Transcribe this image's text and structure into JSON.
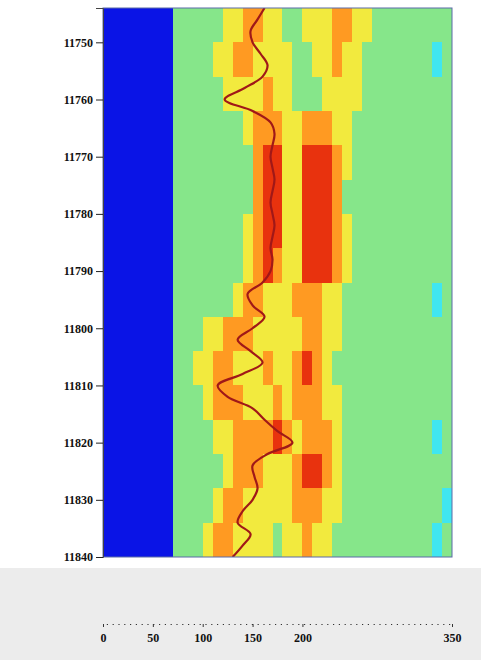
{
  "chart_data": {
    "type": "heatmap",
    "xlim": [
      0,
      350
    ],
    "xticks": [
      0,
      50,
      100,
      150,
      200,
      350
    ],
    "ylim": [
      11744,
      11840
    ],
    "yticks": [
      11750,
      11760,
      11770,
      11780,
      11790,
      11800,
      11810,
      11820,
      11830,
      11840
    ],
    "grid": false,
    "zlim": [
      0,
      4
    ],
    "x": [
      0,
      70,
      80,
      90,
      100,
      110,
      120,
      130,
      140,
      150,
      160,
      170,
      180,
      190,
      200,
      210,
      220,
      230,
      240,
      250,
      260,
      270,
      280,
      290,
      300,
      310,
      320,
      330,
      340,
      350
    ],
    "y": [
      11744,
      11750,
      11756,
      11762,
      11768,
      11774,
      11780,
      11786,
      11792,
      11798,
      11804,
      11810,
      11816,
      11822,
      11828,
      11834,
      11840
    ],
    "values": [
      [
        null,
        1,
        1,
        1,
        1,
        1,
        2,
        2,
        3,
        3,
        2,
        2,
        1,
        1,
        2,
        2,
        2,
        3,
        3,
        2,
        2,
        1,
        1,
        1,
        1,
        1,
        1,
        1,
        1
      ],
      [
        null,
        1,
        1,
        1,
        1,
        2,
        2,
        3,
        3,
        2,
        2,
        2,
        2,
        1,
        1,
        2,
        2,
        3,
        2,
        2,
        1,
        1,
        1,
        1,
        1,
        1,
        1,
        0,
        1
      ],
      [
        null,
        1,
        1,
        1,
        1,
        1,
        2,
        2,
        2,
        2,
        3,
        2,
        2,
        1,
        1,
        1,
        2,
        2,
        2,
        2,
        1,
        1,
        1,
        1,
        1,
        1,
        1,
        1,
        1
      ],
      [
        null,
        1,
        1,
        1,
        1,
        1,
        1,
        1,
        2,
        3,
        3,
        3,
        2,
        2,
        3,
        3,
        3,
        2,
        2,
        1,
        1,
        1,
        1,
        1,
        1,
        1,
        1,
        1,
        1
      ],
      [
        null,
        1,
        1,
        1,
        1,
        1,
        1,
        1,
        1,
        3,
        4,
        4,
        2,
        2,
        4,
        4,
        4,
        3,
        2,
        1,
        1,
        1,
        1,
        1,
        1,
        1,
        1,
        1,
        1
      ],
      [
        null,
        1,
        1,
        1,
        1,
        1,
        1,
        1,
        1,
        3,
        4,
        4,
        2,
        2,
        4,
        4,
        4,
        3,
        1,
        1,
        1,
        1,
        1,
        1,
        1,
        1,
        1,
        1,
        1
      ],
      [
        null,
        1,
        1,
        1,
        1,
        1,
        1,
        1,
        2,
        3,
        4,
        4,
        2,
        2,
        4,
        4,
        4,
        3,
        2,
        1,
        1,
        1,
        1,
        1,
        1,
        1,
        1,
        1,
        1
      ],
      [
        null,
        1,
        1,
        1,
        1,
        1,
        1,
        1,
        2,
        3,
        4,
        3,
        2,
        2,
        4,
        4,
        4,
        3,
        2,
        1,
        1,
        1,
        1,
        1,
        1,
        1,
        1,
        1,
        1
      ],
      [
        null,
        1,
        1,
        1,
        1,
        1,
        1,
        2,
        3,
        3,
        2,
        2,
        2,
        3,
        3,
        3,
        2,
        2,
        1,
        1,
        1,
        1,
        1,
        1,
        1,
        1,
        1,
        0,
        1
      ],
      [
        null,
        1,
        1,
        1,
        2,
        2,
        3,
        3,
        3,
        2,
        2,
        2,
        2,
        2,
        3,
        3,
        2,
        2,
        1,
        1,
        1,
        1,
        1,
        1,
        1,
        1,
        1,
        1,
        1
      ],
      [
        null,
        1,
        1,
        2,
        2,
        3,
        3,
        2,
        2,
        2,
        3,
        2,
        2,
        3,
        4,
        3,
        2,
        1,
        1,
        1,
        1,
        1,
        1,
        1,
        1,
        1,
        1,
        1,
        1
      ],
      [
        null,
        1,
        1,
        1,
        2,
        3,
        3,
        3,
        2,
        2,
        2,
        3,
        2,
        3,
        3,
        3,
        2,
        2,
        1,
        1,
        1,
        1,
        1,
        1,
        1,
        1,
        1,
        1,
        1
      ],
      [
        null,
        1,
        1,
        1,
        1,
        2,
        2,
        3,
        3,
        3,
        3,
        4,
        3,
        2,
        3,
        3,
        3,
        2,
        1,
        1,
        1,
        1,
        1,
        1,
        1,
        1,
        1,
        0,
        1
      ],
      [
        null,
        1,
        1,
        1,
        1,
        1,
        2,
        3,
        3,
        3,
        2,
        2,
        2,
        3,
        4,
        4,
        3,
        2,
        1,
        1,
        1,
        1,
        1,
        1,
        1,
        1,
        1,
        1,
        1
      ],
      [
        null,
        1,
        1,
        1,
        1,
        2,
        3,
        3,
        2,
        2,
        2,
        2,
        2,
        3,
        3,
        3,
        2,
        2,
        1,
        1,
        1,
        1,
        1,
        1,
        1,
        1,
        1,
        1,
        0
      ],
      [
        null,
        1,
        1,
        1,
        2,
        3,
        3,
        2,
        2,
        2,
        2,
        1,
        2,
        2,
        3,
        2,
        2,
        1,
        1,
        1,
        1,
        1,
        1,
        1,
        1,
        1,
        1,
        0,
        1
      ]
    ],
    "series": [
      {
        "type": "line",
        "color": "#a01818",
        "x": [
          162,
          155,
          148,
          150,
          158,
          165,
          160,
          142,
          122,
          150,
          168,
          172,
          170,
          168,
          170,
          172,
          170,
          168,
          170,
          172,
          170,
          168,
          170,
          168,
          160,
          145,
          150,
          162,
          150,
          135,
          148,
          160,
          140,
          115,
          125,
          150,
          162,
          175,
          190,
          165,
          150,
          152,
          155,
          150,
          140,
          135,
          148,
          140,
          130
        ],
        "y": [
          11744,
          11746,
          11748,
          11750,
          11752,
          11754,
          11756,
          11758,
          11760,
          11762,
          11764,
          11766,
          11768,
          11770,
          11772,
          11774,
          11776,
          11778,
          11780,
          11782,
          11784,
          11786,
          11788,
          11790,
          11792,
          11794,
          11796,
          11798,
          11800,
          11802,
          11804,
          11806,
          11808,
          11810,
          11812,
          11814,
          11816,
          11818,
          11820,
          11822,
          11824,
          11826,
          11828,
          11830,
          11832,
          11834,
          11836,
          11838,
          11840
        ]
      }
    ]
  }
}
